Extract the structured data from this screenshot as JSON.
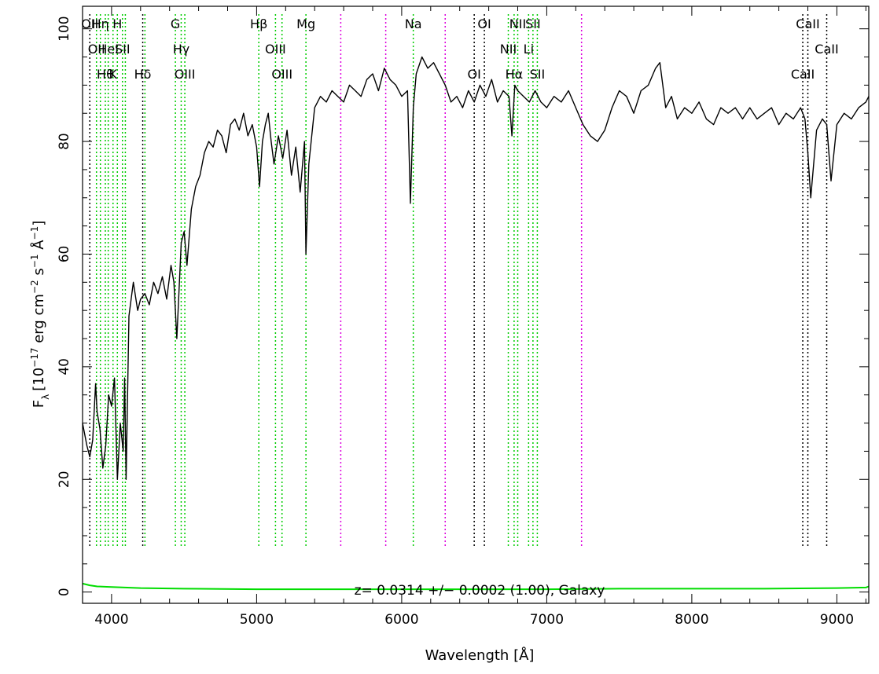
{
  "chart_data": {
    "type": "line",
    "title": "",
    "xlabel": "Wavelength [Å]",
    "ylabel": "F_λ [10^-17 erg cm^-2 s^-1 Å^-1]",
    "ylabel_parts": {
      "base": "F",
      "sub": "λ",
      "t1": "[10",
      "e1": "−17",
      "t2": " erg cm",
      "e2": "−2",
      "t3": " s",
      "e3": "−1",
      "t4": " Å",
      "e4": "−1",
      "t5": "]"
    },
    "xlim": [
      3800,
      9220
    ],
    "ylim": [
      -2,
      104
    ],
    "x_ticks": [
      4000,
      5000,
      6000,
      7000,
      8000,
      9000
    ],
    "y_ticks": [
      0,
      20,
      40,
      60,
      80,
      100
    ],
    "annotation": "z= 0.0314 +/− 0.0002 (1.00), Galaxy",
    "colors": {
      "spectrum": "#000000",
      "error": "#00dd00",
      "emission_line": "#00cc00",
      "absorption_line": "#000000",
      "sky_line": "#dd00dd"
    },
    "series": [
      {
        "name": "",
        "role": "spectrum",
        "x": [
          3800,
          3830,
          3850,
          3870,
          3890,
          3900,
          3920,
          3940,
          3960,
          3980,
          4000,
          4020,
          4040,
          4060,
          4080,
          4090,
          4100,
          4120,
          4150,
          4180,
          4200,
          4230,
          4260,
          4290,
          4320,
          4350,
          4380,
          4410,
          4430,
          4450,
          4480,
          4500,
          4520,
          4550,
          4580,
          4610,
          4640,
          4670,
          4700,
          4730,
          4760,
          4790,
          4820,
          4850,
          4880,
          4910,
          4940,
          4970,
          5000,
          5020,
          5040,
          5060,
          5080,
          5100,
          5120,
          5150,
          5180,
          5210,
          5240,
          5270,
          5300,
          5330,
          5340,
          5360,
          5400,
          5440,
          5480,
          5520,
          5560,
          5600,
          5640,
          5680,
          5720,
          5760,
          5800,
          5840,
          5880,
          5920,
          5960,
          6000,
          6040,
          6060,
          6080,
          6100,
          6140,
          6180,
          6220,
          6260,
          6300,
          6340,
          6380,
          6420,
          6460,
          6500,
          6540,
          6580,
          6620,
          6660,
          6700,
          6740,
          6760,
          6780,
          6800,
          6840,
          6880,
          6920,
          6960,
          7000,
          7050,
          7100,
          7150,
          7200,
          7250,
          7300,
          7350,
          7400,
          7450,
          7500,
          7550,
          7600,
          7650,
          7700,
          7750,
          7780,
          7820,
          7860,
          7900,
          7950,
          8000,
          8050,
          8100,
          8150,
          8200,
          8250,
          8300,
          8350,
          8400,
          8450,
          8500,
          8550,
          8600,
          8650,
          8700,
          8750,
          8780,
          8800,
          8820,
          8860,
          8900,
          8930,
          8960,
          9000,
          9050,
          9100,
          9150,
          9200,
          9220
        ],
        "y": [
          30,
          26,
          24,
          27,
          37,
          32,
          29,
          22,
          26,
          35,
          33,
          38,
          20,
          30,
          25,
          38,
          20,
          49,
          55,
          50,
          52,
          53,
          51,
          55,
          53,
          56,
          52,
          58,
          55,
          45,
          62,
          64,
          58,
          68,
          72,
          74,
          78,
          80,
          79,
          82,
          81,
          78,
          83,
          84,
          82,
          85,
          81,
          83,
          79,
          72,
          80,
          83,
          85,
          80,
          76,
          81,
          77,
          82,
          74,
          79,
          71,
          80,
          60,
          76,
          86,
          88,
          87,
          89,
          88,
          87,
          90,
          89,
          88,
          91,
          92,
          89,
          93,
          91,
          90,
          88,
          89,
          69,
          86,
          92,
          95,
          93,
          94,
          92,
          90,
          87,
          88,
          86,
          89,
          87,
          90,
          88,
          91,
          87,
          89,
          88,
          81,
          90,
          89,
          88,
          87,
          89,
          87,
          86,
          88,
          87,
          89,
          86,
          83,
          81,
          80,
          82,
          86,
          89,
          88,
          85,
          89,
          90,
          93,
          94,
          86,
          88,
          84,
          86,
          85,
          87,
          84,
          83,
          86,
          85,
          86,
          84,
          86,
          84,
          85,
          86,
          83,
          85,
          84,
          86,
          84,
          78,
          70,
          82,
          84,
          83,
          73,
          83,
          85,
          84,
          86,
          87,
          88
        ]
      },
      {
        "name": "",
        "role": "error",
        "x": [
          3800,
          3850,
          3900,
          4000,
          4200,
          4500,
          5000,
          5500,
          6000,
          6500,
          7000,
          7500,
          8000,
          8500,
          9000,
          9200,
          9220
        ],
        "y": [
          1.5,
          1.2,
          1.0,
          0.9,
          0.7,
          0.6,
          0.5,
          0.5,
          0.5,
          0.5,
          0.5,
          0.6,
          0.6,
          0.6,
          0.7,
          0.8,
          1.0
        ]
      }
    ],
    "spectral_lines": [
      {
        "wavelength": 3850,
        "kind": "absorption",
        "label": "OII",
        "row": 0
      },
      {
        "wavelength": 3896,
        "kind": "emission",
        "label": "OII",
        "row": 1
      },
      {
        "wavelength": 3923,
        "kind": "emission",
        "label": "Hη",
        "row": 0
      },
      {
        "wavelength": 3957,
        "kind": "emission",
        "label": "Hθ",
        "row": 2
      },
      {
        "wavelength": 3977,
        "kind": "emission",
        "label": "HeI",
        "row": 1
      },
      {
        "wavelength": 4010,
        "kind": "emission",
        "label": "K",
        "row": 2
      },
      {
        "wavelength": 4040,
        "kind": "emission",
        "label": "H",
        "row": 0
      },
      {
        "wavelength": 4075,
        "kind": "emission",
        "label": "SII",
        "row": 1
      },
      {
        "wavelength": 4095,
        "kind": "emission",
        "label": "",
        "row": 1
      },
      {
        "wavelength": 4215,
        "kind": "absorption",
        "label": "Hδ",
        "row": 2
      },
      {
        "wavelength": 4230,
        "kind": "emission",
        "label": "",
        "row": 2
      },
      {
        "wavelength": 4440,
        "kind": "emission",
        "label": "G",
        "row": 0
      },
      {
        "wavelength": 4480,
        "kind": "emission",
        "label": "Hγ",
        "row": 1
      },
      {
        "wavelength": 4505,
        "kind": "emission",
        "label": "OIII",
        "row": 2
      },
      {
        "wavelength": 5015,
        "kind": "emission",
        "label": "Hβ",
        "row": 0
      },
      {
        "wavelength": 5130,
        "kind": "emission",
        "label": "OIII",
        "row": 1
      },
      {
        "wavelength": 5175,
        "kind": "emission",
        "label": "OIII",
        "row": 2
      },
      {
        "wavelength": 5340,
        "kind": "emission",
        "label": "Mg",
        "row": 0
      },
      {
        "wavelength": 5580,
        "kind": "sky",
        "label": "",
        "row": 0
      },
      {
        "wavelength": 5890,
        "kind": "sky",
        "label": "",
        "row": 0
      },
      {
        "wavelength": 6080,
        "kind": "emission",
        "label": "Na",
        "row": 0
      },
      {
        "wavelength": 6300,
        "kind": "sky",
        "label": "",
        "row": 0
      },
      {
        "wavelength": 6500,
        "kind": "absorption",
        "label": "OI",
        "row": 2
      },
      {
        "wavelength": 6570,
        "kind": "absorption",
        "label": "OI",
        "row": 0
      },
      {
        "wavelength": 6735,
        "kind": "emission",
        "label": "NII",
        "row": 1
      },
      {
        "wavelength": 6775,
        "kind": "emission",
        "label": "Hα",
        "row": 2
      },
      {
        "wavelength": 6800,
        "kind": "emission",
        "label": "NII",
        "row": 0
      },
      {
        "wavelength": 6875,
        "kind": "emission",
        "label": "Li",
        "row": 1
      },
      {
        "wavelength": 6905,
        "kind": "emission",
        "label": "SII",
        "row": 0
      },
      {
        "wavelength": 6935,
        "kind": "emission",
        "label": "SII",
        "row": 2
      },
      {
        "wavelength": 7240,
        "kind": "sky",
        "label": "",
        "row": 0
      },
      {
        "wavelength": 8765,
        "kind": "absorption",
        "label": "CaII",
        "row": 2
      },
      {
        "wavelength": 8800,
        "kind": "absorption",
        "label": "CaII",
        "row": 0
      },
      {
        "wavelength": 8930,
        "kind": "absorption",
        "label": "CaII",
        "row": 1
      }
    ]
  }
}
